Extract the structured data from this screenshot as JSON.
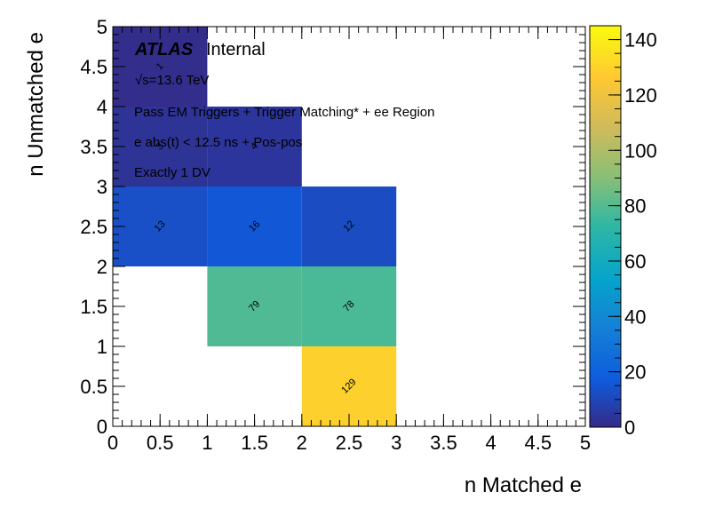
{
  "chart_data": {
    "type": "heatmap",
    "xlabel": "n Matched e",
    "ylabel": "n Unmatched e",
    "xlim": [
      0,
      5
    ],
    "ylim": [
      0,
      5
    ],
    "x_ticks": [
      "0",
      "0.5",
      "1",
      "1.5",
      "2",
      "2.5",
      "3",
      "3.5",
      "4",
      "4.5",
      "5"
    ],
    "y_ticks": [
      "0",
      "0.5",
      "1",
      "1.5",
      "2",
      "2.5",
      "3",
      "3.5",
      "4",
      "4.5",
      "5"
    ],
    "colorbar": {
      "range": [
        0,
        145
      ],
      "ticks": [
        "0",
        "20",
        "40",
        "60",
        "80",
        "100",
        "120",
        "140"
      ]
    },
    "cells": [
      {
        "x": [
          0,
          1
        ],
        "y": [
          4,
          5
        ],
        "value": 1,
        "label": "1"
      },
      {
        "x": [
          0,
          1
        ],
        "y": [
          3,
          4
        ],
        "value": 3,
        "label": "3"
      },
      {
        "x": [
          1,
          2
        ],
        "y": [
          3,
          4
        ],
        "value": 4,
        "label": "4"
      },
      {
        "x": [
          0,
          1
        ],
        "y": [
          2,
          3
        ],
        "value": 13,
        "label": "13"
      },
      {
        "x": [
          1,
          2
        ],
        "y": [
          2,
          3
        ],
        "value": 16,
        "label": "16"
      },
      {
        "x": [
          2,
          3
        ],
        "y": [
          2,
          3
        ],
        "value": 12,
        "label": "12"
      },
      {
        "x": [
          1,
          2
        ],
        "y": [
          1,
          2
        ],
        "value": 79,
        "label": "79"
      },
      {
        "x": [
          2,
          3
        ],
        "y": [
          1,
          2
        ],
        "value": 78,
        "label": "78"
      },
      {
        "x": [
          2,
          3
        ],
        "y": [
          0,
          1
        ],
        "value": 129,
        "label": "129"
      }
    ],
    "annotations": {
      "atlas": "ATLAS",
      "internal": "Internal",
      "energy": "√s=13.6 TeV",
      "line1": "Pass EM Triggers + Trigger Matching* + ee Region",
      "line2": "e abs(t) < 12.5 ns + Pos-pos",
      "line3": "Exactly 1 DV"
    }
  }
}
